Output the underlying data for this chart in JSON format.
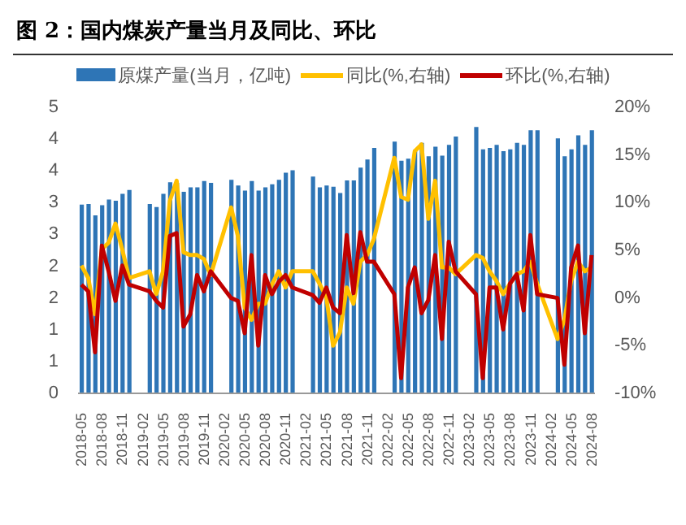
{
  "chart_data": {
    "type": "bar",
    "title": "图 2：国内煤炭产量当月及同比、环比",
    "categories": [
      "2018-05",
      null,
      null,
      "2018-08",
      null,
      null,
      "2018-11",
      null,
      null,
      "2019-02",
      null,
      null,
      "2019-05",
      null,
      null,
      "2019-08",
      null,
      null,
      "2019-11",
      null,
      null,
      "2020-02",
      null,
      null,
      "2020-05",
      null,
      null,
      "2020-08",
      null,
      null,
      "2020-11",
      null,
      null,
      "2021-02",
      null,
      null,
      "2021-05",
      null,
      null,
      "2021-08",
      null,
      null,
      "2021-11",
      null,
      null,
      "2022-02",
      null,
      null,
      "2022-05",
      null,
      null,
      "2022-08",
      null,
      null,
      "2022-11",
      null,
      null,
      "2023-02",
      null,
      null,
      "2023-05",
      null,
      null,
      "2023-08",
      null,
      null,
      "2023-11",
      null,
      null,
      "2024-02",
      null,
      null,
      "2024-05",
      null,
      null,
      "2024-08"
    ],
    "series": [
      {
        "name": "原煤产量(当月，亿吨)",
        "color": "#2e75b6",
        "values": [
          2.97,
          2.98,
          2.8,
          2.96,
          3.05,
          3.03,
          3.14,
          3.2,
          null,
          null,
          2.98,
          2.93,
          3.14,
          3.32,
          3.31,
          3.17,
          3.24,
          3.24,
          3.34,
          3.31,
          null,
          null,
          3.36,
          3.27,
          3.19,
          3.34,
          3.19,
          3.24,
          3.29,
          3.36,
          3.47,
          3.51,
          null,
          null,
          3.41,
          3.24,
          3.27,
          3.25,
          3.15,
          3.35,
          3.35,
          3.55,
          3.68,
          3.86,
          null,
          null,
          3.96,
          3.66,
          3.69,
          3.83,
          3.94,
          3.73,
          3.88,
          3.74,
          3.91,
          4.04,
          null,
          null,
          4.19,
          3.84,
          3.86,
          3.91,
          3.81,
          3.84,
          3.94,
          3.91,
          4.14,
          4.14,
          null,
          null,
          4.01,
          3.73,
          3.84,
          4.06,
          3.91,
          4.14
        ]
      },
      {
        "name": "同比(%,右轴)",
        "type": "line",
        "axis": "y2",
        "color": "#ffc000",
        "values": [
          3.4,
          2.1,
          -1.7,
          5.1,
          5.8,
          7.8,
          5.1,
          2.1,
          null,
          null,
          2.8,
          0.4,
          2.8,
          10.2,
          12.3,
          4.8,
          4.5,
          4.5,
          4.1,
          2.4,
          null,
          null,
          9.5,
          6.5,
          -1.0,
          -2.3,
          -0.6,
          -0.6,
          1.4,
          2.8,
          1.1,
          2.8,
          null,
          null,
          2.8,
          1.5,
          0.1,
          -5.0,
          -3.6,
          1.1,
          -0.6,
          3.8,
          4.5,
          6.2,
          null,
          null,
          14.7,
          10.6,
          10.3,
          15.4,
          16.1,
          8.3,
          12.3,
          3.2,
          3.2,
          2.5,
          null,
          null,
          4.5,
          4.2,
          2.8,
          1.8,
          0.4,
          1.5,
          2.5,
          2.8,
          3.8,
          1.5,
          null,
          null,
          -4.3,
          -2.3,
          1.8,
          3.8,
          2.8,
          3.2
        ]
      },
      {
        "name": "环比(%,右轴)",
        "type": "line",
        "axis": "y2",
        "color": "#c00000",
        "values": [
          1.4,
          0.7,
          -5.7,
          5.5,
          2.8,
          -0.3,
          3.4,
          1.4,
          null,
          null,
          0.7,
          -0.3,
          -1.0,
          6.5,
          6.8,
          -3.0,
          -1.7,
          2.4,
          0.7,
          2.8,
          null,
          null,
          0.0,
          -0.3,
          -3.7,
          4.5,
          -5.0,
          2.4,
          0.4,
          1.7,
          2.4,
          1.1,
          null,
          null,
          0.3,
          -0.5,
          1.1,
          -1.0,
          -1.6,
          6.6,
          0.5,
          6.9,
          3.8,
          3.8,
          null,
          null,
          0.4,
          -8.4,
          1.1,
          3.2,
          -1.6,
          -0.2,
          4.5,
          -4.3,
          5.9,
          2.8,
          null,
          null,
          0.4,
          -8.4,
          1.1,
          1.1,
          -3.3,
          1.5,
          2.5,
          -1.3,
          6.6,
          0.4,
          null,
          null,
          0.0,
          -7.0,
          3.2,
          5.5,
          -3.7,
          4.5
        ]
      }
    ],
    "ylim": [
      0,
      4.5
    ],
    "yticks": [
      0,
      {
        "value": 0.5,
        "label": "1"
      },
      1,
      {
        "value": 1.5,
        "label": "2"
      },
      2,
      {
        "value": 2.5,
        "label": "3"
      },
      3,
      {
        "value": 3.5,
        "label": "4"
      },
      4,
      {
        "value": 4.5,
        "label": "5"
      }
    ],
    "y2lim": [
      -10,
      20
    ],
    "y2ticks": [
      {
        "value": -10,
        "label": "-10%"
      },
      {
        "value": -5,
        "label": "-5%"
      },
      {
        "value": 0,
        "label": "0%"
      },
      {
        "value": 5,
        "label": "5%"
      },
      {
        "value": 10,
        "label": "10%"
      },
      {
        "value": 15,
        "label": "15%"
      },
      {
        "value": 20,
        "label": "20%"
      }
    ],
    "legend": "top",
    "grid": false
  }
}
